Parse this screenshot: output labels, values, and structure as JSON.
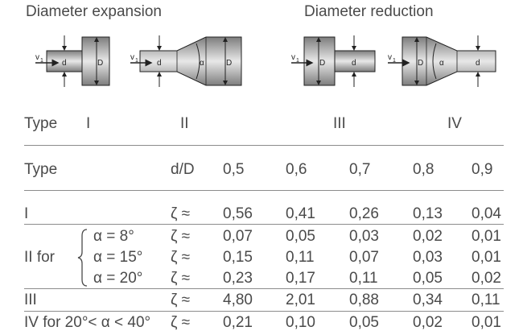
{
  "headings": {
    "expansion": "Diameter expansion",
    "reduction": "Diameter reduction"
  },
  "diagram_labels": {
    "v1": "v",
    "v1_sub": "1",
    "d": "d",
    "D": "D",
    "alpha": "α"
  },
  "type_row": {
    "label": "Type",
    "values": [
      "I",
      "II",
      "III",
      "IV"
    ]
  },
  "header_row": {
    "label": "Type",
    "ratio": "d/D",
    "values": [
      "0,5",
      "0,6",
      "0,7",
      "0,8",
      "0,9"
    ]
  },
  "rows": [
    {
      "type": "I",
      "zeta": "ζ ≈",
      "values": [
        "0,56",
        "0,41",
        "0,26",
        "0,13",
        "0,04"
      ]
    },
    {
      "alpha": "α =   8°",
      "zeta": "ζ ≈",
      "values": [
        "0,07",
        "0,05",
        "0,03",
        "0,02",
        "0,01"
      ]
    },
    {
      "alpha": "α = 15°",
      "zeta": "ζ ≈",
      "values": [
        "0,15",
        "0,11",
        "0,07",
        "0,03",
        "0,01"
      ]
    },
    {
      "alpha": "α = 20°",
      "zeta": "ζ ≈",
      "values": [
        "0,23",
        "0,17",
        "0,11",
        "0,05",
        "0,02"
      ]
    },
    {
      "type": "III",
      "zeta": "ζ ≈",
      "values": [
        "4,80",
        "2,01",
        "0,88",
        "0,34",
        "0,11"
      ]
    },
    {
      "type": "IV for 20°< α < 40°",
      "zeta": "ζ ≈",
      "values": [
        "0,21",
        "0,10",
        "0,05",
        "0,02",
        "0,01"
      ]
    }
  ],
  "group_label": "II for",
  "colors": {
    "pipe_light": "#d9d9d9",
    "pipe_dark": "#8a8a8a",
    "text": "#4a4a4a",
    "rule": "#8c8c8c"
  }
}
